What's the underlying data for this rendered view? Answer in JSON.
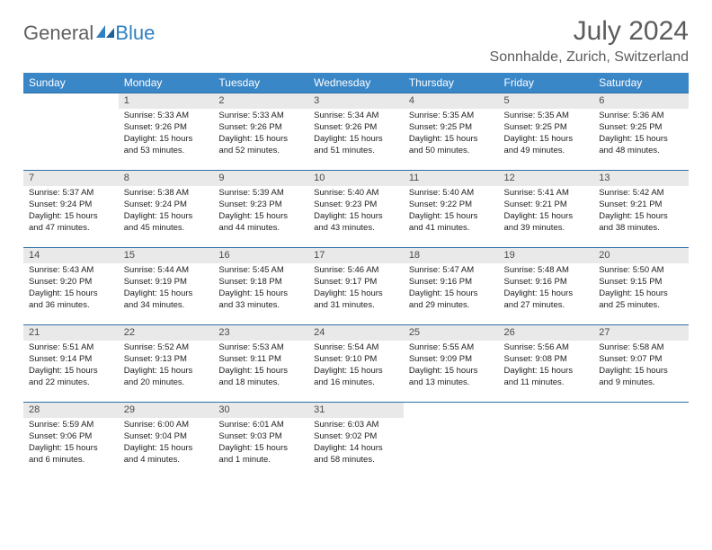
{
  "brand": {
    "word1": "General",
    "word2": "Blue",
    "word1_color": "#606060",
    "word2_color": "#2f7fc1",
    "icon_color": "#2f7fc1"
  },
  "title": "July 2024",
  "location": "Sonnhalde, Zurich, Switzerland",
  "colors": {
    "header_bg": "#3a87c8",
    "header_fg": "#ffffff",
    "daynum_bg": "#e9e9e9",
    "daynum_fg": "#4a4a4a",
    "row_border": "#2f6fa8",
    "title_color": "#5c5c5c"
  },
  "weekdays": [
    "Sunday",
    "Monday",
    "Tuesday",
    "Wednesday",
    "Thursday",
    "Friday",
    "Saturday"
  ],
  "weeks": [
    [
      {},
      {
        "day": "1",
        "sunrise": "Sunrise: 5:33 AM",
        "sunset": "Sunset: 9:26 PM",
        "daylight1": "Daylight: 15 hours",
        "daylight2": "and 53 minutes."
      },
      {
        "day": "2",
        "sunrise": "Sunrise: 5:33 AM",
        "sunset": "Sunset: 9:26 PM",
        "daylight1": "Daylight: 15 hours",
        "daylight2": "and 52 minutes."
      },
      {
        "day": "3",
        "sunrise": "Sunrise: 5:34 AM",
        "sunset": "Sunset: 9:26 PM",
        "daylight1": "Daylight: 15 hours",
        "daylight2": "and 51 minutes."
      },
      {
        "day": "4",
        "sunrise": "Sunrise: 5:35 AM",
        "sunset": "Sunset: 9:25 PM",
        "daylight1": "Daylight: 15 hours",
        "daylight2": "and 50 minutes."
      },
      {
        "day": "5",
        "sunrise": "Sunrise: 5:35 AM",
        "sunset": "Sunset: 9:25 PM",
        "daylight1": "Daylight: 15 hours",
        "daylight2": "and 49 minutes."
      },
      {
        "day": "6",
        "sunrise": "Sunrise: 5:36 AM",
        "sunset": "Sunset: 9:25 PM",
        "daylight1": "Daylight: 15 hours",
        "daylight2": "and 48 minutes."
      }
    ],
    [
      {
        "day": "7",
        "sunrise": "Sunrise: 5:37 AM",
        "sunset": "Sunset: 9:24 PM",
        "daylight1": "Daylight: 15 hours",
        "daylight2": "and 47 minutes."
      },
      {
        "day": "8",
        "sunrise": "Sunrise: 5:38 AM",
        "sunset": "Sunset: 9:24 PM",
        "daylight1": "Daylight: 15 hours",
        "daylight2": "and 45 minutes."
      },
      {
        "day": "9",
        "sunrise": "Sunrise: 5:39 AM",
        "sunset": "Sunset: 9:23 PM",
        "daylight1": "Daylight: 15 hours",
        "daylight2": "and 44 minutes."
      },
      {
        "day": "10",
        "sunrise": "Sunrise: 5:40 AM",
        "sunset": "Sunset: 9:23 PM",
        "daylight1": "Daylight: 15 hours",
        "daylight2": "and 43 minutes."
      },
      {
        "day": "11",
        "sunrise": "Sunrise: 5:40 AM",
        "sunset": "Sunset: 9:22 PM",
        "daylight1": "Daylight: 15 hours",
        "daylight2": "and 41 minutes."
      },
      {
        "day": "12",
        "sunrise": "Sunrise: 5:41 AM",
        "sunset": "Sunset: 9:21 PM",
        "daylight1": "Daylight: 15 hours",
        "daylight2": "and 39 minutes."
      },
      {
        "day": "13",
        "sunrise": "Sunrise: 5:42 AM",
        "sunset": "Sunset: 9:21 PM",
        "daylight1": "Daylight: 15 hours",
        "daylight2": "and 38 minutes."
      }
    ],
    [
      {
        "day": "14",
        "sunrise": "Sunrise: 5:43 AM",
        "sunset": "Sunset: 9:20 PM",
        "daylight1": "Daylight: 15 hours",
        "daylight2": "and 36 minutes."
      },
      {
        "day": "15",
        "sunrise": "Sunrise: 5:44 AM",
        "sunset": "Sunset: 9:19 PM",
        "daylight1": "Daylight: 15 hours",
        "daylight2": "and 34 minutes."
      },
      {
        "day": "16",
        "sunrise": "Sunrise: 5:45 AM",
        "sunset": "Sunset: 9:18 PM",
        "daylight1": "Daylight: 15 hours",
        "daylight2": "and 33 minutes."
      },
      {
        "day": "17",
        "sunrise": "Sunrise: 5:46 AM",
        "sunset": "Sunset: 9:17 PM",
        "daylight1": "Daylight: 15 hours",
        "daylight2": "and 31 minutes."
      },
      {
        "day": "18",
        "sunrise": "Sunrise: 5:47 AM",
        "sunset": "Sunset: 9:16 PM",
        "daylight1": "Daylight: 15 hours",
        "daylight2": "and 29 minutes."
      },
      {
        "day": "19",
        "sunrise": "Sunrise: 5:48 AM",
        "sunset": "Sunset: 9:16 PM",
        "daylight1": "Daylight: 15 hours",
        "daylight2": "and 27 minutes."
      },
      {
        "day": "20",
        "sunrise": "Sunrise: 5:50 AM",
        "sunset": "Sunset: 9:15 PM",
        "daylight1": "Daylight: 15 hours",
        "daylight2": "and 25 minutes."
      }
    ],
    [
      {
        "day": "21",
        "sunrise": "Sunrise: 5:51 AM",
        "sunset": "Sunset: 9:14 PM",
        "daylight1": "Daylight: 15 hours",
        "daylight2": "and 22 minutes."
      },
      {
        "day": "22",
        "sunrise": "Sunrise: 5:52 AM",
        "sunset": "Sunset: 9:13 PM",
        "daylight1": "Daylight: 15 hours",
        "daylight2": "and 20 minutes."
      },
      {
        "day": "23",
        "sunrise": "Sunrise: 5:53 AM",
        "sunset": "Sunset: 9:11 PM",
        "daylight1": "Daylight: 15 hours",
        "daylight2": "and 18 minutes."
      },
      {
        "day": "24",
        "sunrise": "Sunrise: 5:54 AM",
        "sunset": "Sunset: 9:10 PM",
        "daylight1": "Daylight: 15 hours",
        "daylight2": "and 16 minutes."
      },
      {
        "day": "25",
        "sunrise": "Sunrise: 5:55 AM",
        "sunset": "Sunset: 9:09 PM",
        "daylight1": "Daylight: 15 hours",
        "daylight2": "and 13 minutes."
      },
      {
        "day": "26",
        "sunrise": "Sunrise: 5:56 AM",
        "sunset": "Sunset: 9:08 PM",
        "daylight1": "Daylight: 15 hours",
        "daylight2": "and 11 minutes."
      },
      {
        "day": "27",
        "sunrise": "Sunrise: 5:58 AM",
        "sunset": "Sunset: 9:07 PM",
        "daylight1": "Daylight: 15 hours",
        "daylight2": "and 9 minutes."
      }
    ],
    [
      {
        "day": "28",
        "sunrise": "Sunrise: 5:59 AM",
        "sunset": "Sunset: 9:06 PM",
        "daylight1": "Daylight: 15 hours",
        "daylight2": "and 6 minutes."
      },
      {
        "day": "29",
        "sunrise": "Sunrise: 6:00 AM",
        "sunset": "Sunset: 9:04 PM",
        "daylight1": "Daylight: 15 hours",
        "daylight2": "and 4 minutes."
      },
      {
        "day": "30",
        "sunrise": "Sunrise: 6:01 AM",
        "sunset": "Sunset: 9:03 PM",
        "daylight1": "Daylight: 15 hours",
        "daylight2": "and 1 minute."
      },
      {
        "day": "31",
        "sunrise": "Sunrise: 6:03 AM",
        "sunset": "Sunset: 9:02 PM",
        "daylight1": "Daylight: 14 hours",
        "daylight2": "and 58 minutes."
      },
      {},
      {},
      {}
    ]
  ]
}
